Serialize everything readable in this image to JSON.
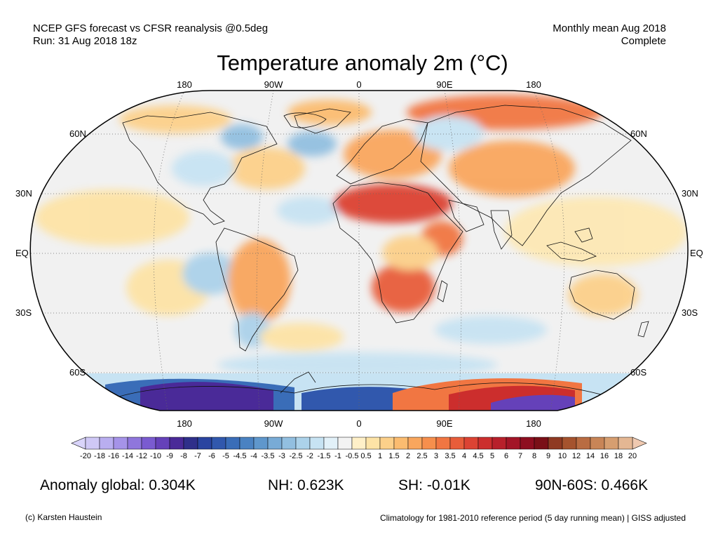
{
  "header": {
    "left_line1": "NCEP GFS forecast vs CFSR reanalysis @0.5deg",
    "left_line2": "Run: 31 Aug 2018 18z",
    "right_line1": "Monthly mean Aug 2018",
    "right_line2": "Complete"
  },
  "title": "Temperature anomaly 2m (°C)",
  "map": {
    "projection": "Robinson",
    "lon_labels_top": [
      "180",
      "90W",
      "0",
      "90E",
      "180"
    ],
    "lon_labels_bottom": [
      "180",
      "90W",
      "0",
      "90E",
      "180"
    ],
    "lat_labels_left": [
      "60N",
      "30N",
      "EQ",
      "30S",
      "60S"
    ],
    "lat_labels_right": [
      "60N",
      "30N",
      "EQ",
      "30S",
      "60S"
    ]
  },
  "colorbar": {
    "labels": [
      "-20",
      "-18",
      "-16",
      "-14",
      "-12",
      "-10",
      "-9",
      "-8",
      "-7",
      "-6",
      "-5",
      "-4.5",
      "-4",
      "-3.5",
      "-3",
      "-2.5",
      "-2",
      "-1.5",
      "-1",
      "-0.5",
      "0.5",
      "1",
      "1.5",
      "2",
      "2.5",
      "3",
      "3.5",
      "4",
      "4.5",
      "5",
      "6",
      "7",
      "8",
      "9",
      "10",
      "12",
      "14",
      "16",
      "18",
      "20"
    ],
    "colors": [
      "#cfc8f6",
      "#b9aef0",
      "#a593e8",
      "#8f76dc",
      "#7a5bd0",
      "#6541b9",
      "#4a2a98",
      "#2f2f8a",
      "#2a44a0",
      "#3158ad",
      "#3a6db8",
      "#4a82c2",
      "#5f97cc",
      "#78abd6",
      "#92bfe0",
      "#acd2ea",
      "#c7e3f3",
      "#e2f1f9",
      "#f3f3f3",
      "#fff0c8",
      "#fde3a6",
      "#fcd08a",
      "#fbbc70",
      "#f9a65d",
      "#f68f4d",
      "#f17642",
      "#e85d3a",
      "#dc4333",
      "#cc2e2d",
      "#b8202b",
      "#a31527",
      "#8e0e20",
      "#7a0f17",
      "#8f3a22",
      "#a5532e",
      "#b96c42",
      "#c88557",
      "#d69e70",
      "#e4b793"
    ],
    "left_arrow_color": "#d9d4fa",
    "right_arrow_color": "#efc9b0"
  },
  "stats": {
    "global": "Anomaly global: 0.304K",
    "nh": "NH: 0.623K",
    "sh": "SH: -0.01K",
    "arctic": "90N-60S: 0.466K"
  },
  "footer": {
    "left": "(c) Karsten Haustein",
    "right": "Climatology for 1981-2010 reference period (5 day running mean) | GISS adjusted"
  }
}
